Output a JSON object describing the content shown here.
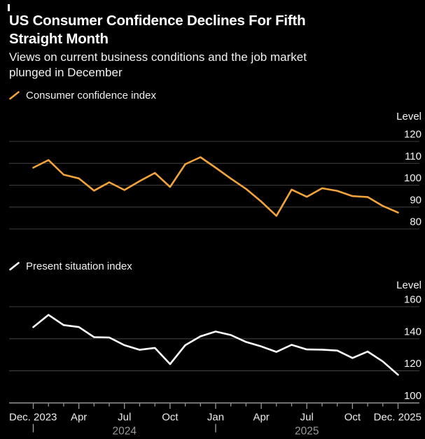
{
  "header": {
    "title_line1": "US Consumer Confidence Declines For Fifth",
    "title_line2": "Straight Month",
    "subtitle_line1": "Views on current business conditions and the job market",
    "subtitle_line2": "plunged in December"
  },
  "colors": {
    "background": "#000000",
    "title": "#ffffff",
    "subtitle": "#f2f2f2",
    "grid": "#3d3d3d",
    "axis": "#9a9a9a",
    "month_label": "#ececec",
    "year_label": "#9a9a9a",
    "y_label": "#f5f5f5",
    "consumer_confidence": "#f2a33a",
    "present_situation": "#ffffff"
  },
  "chart_data": {
    "type": "line",
    "x": [
      "Dec 2023",
      "Jan 2024",
      "Feb 2024",
      "Mar 2024",
      "Apr 2024",
      "May 2024",
      "Jun 2024",
      "Jul 2024",
      "Aug 2024",
      "Sep 2024",
      "Oct 2024",
      "Nov 2024",
      "Dec 2024",
      "Jan 2025",
      "Feb 2025",
      "Mar 2025",
      "Apr 2025",
      "May 2025",
      "Jun 2025",
      "Jul 2025",
      "Aug 2025",
      "Sep 2025",
      "Oct 2025",
      "Nov 2025",
      "Dec 2025"
    ],
    "charts": [
      {
        "legend": "Consumer confidence index",
        "ylabel": "Level",
        "color": "#f2a33a",
        "y_ticks": [
          120,
          110,
          100,
          90,
          80
        ],
        "ylim": [
          76,
          124
        ],
        "values": [
          108.0,
          111.5,
          104.8,
          103.1,
          97.5,
          101.3,
          97.8,
          101.9,
          105.6,
          99.2,
          109.6,
          112.8,
          108.0,
          103.0,
          98.3,
          92.5,
          86.0,
          98.0,
          94.7,
          98.6,
          97.4,
          95.0,
          94.6,
          90.5,
          87.5
        ]
      },
      {
        "legend": "Present situation index",
        "ylabel": "Level",
        "color": "#ffffff",
        "y_ticks": [
          160,
          140,
          120,
          100
        ],
        "ylim": [
          96,
          164
        ],
        "values": [
          147.2,
          154.9,
          148.5,
          147.3,
          141.0,
          140.8,
          136.0,
          133.1,
          134.3,
          124.2,
          136.0,
          141.5,
          144.5,
          142.3,
          138.0,
          135.2,
          131.8,
          136.2,
          133.3,
          133.2,
          132.6,
          128.0,
          132.0,
          125.8,
          117.5
        ]
      }
    ],
    "x_ticks": [
      {
        "text": "Dec. 2023",
        "align": "left"
      },
      {
        "text": "Apr",
        "k": 3
      },
      {
        "text": "Jul",
        "k": 6
      },
      {
        "text": "Oct",
        "k": 9
      },
      {
        "text": "Jan",
        "k": 12
      },
      {
        "text": "Apr",
        "k": 15
      },
      {
        "text": "Jul",
        "k": 18
      },
      {
        "text": "Oct",
        "k": 21
      },
      {
        "text": "Dec. 2025",
        "align": "right"
      }
    ],
    "years": [
      {
        "text": "2024",
        "start_k": 0,
        "end_k": 12
      },
      {
        "text": "2025",
        "start_k": 12,
        "end_k": 24
      }
    ],
    "grid": true,
    "legend_position": "top-left"
  }
}
